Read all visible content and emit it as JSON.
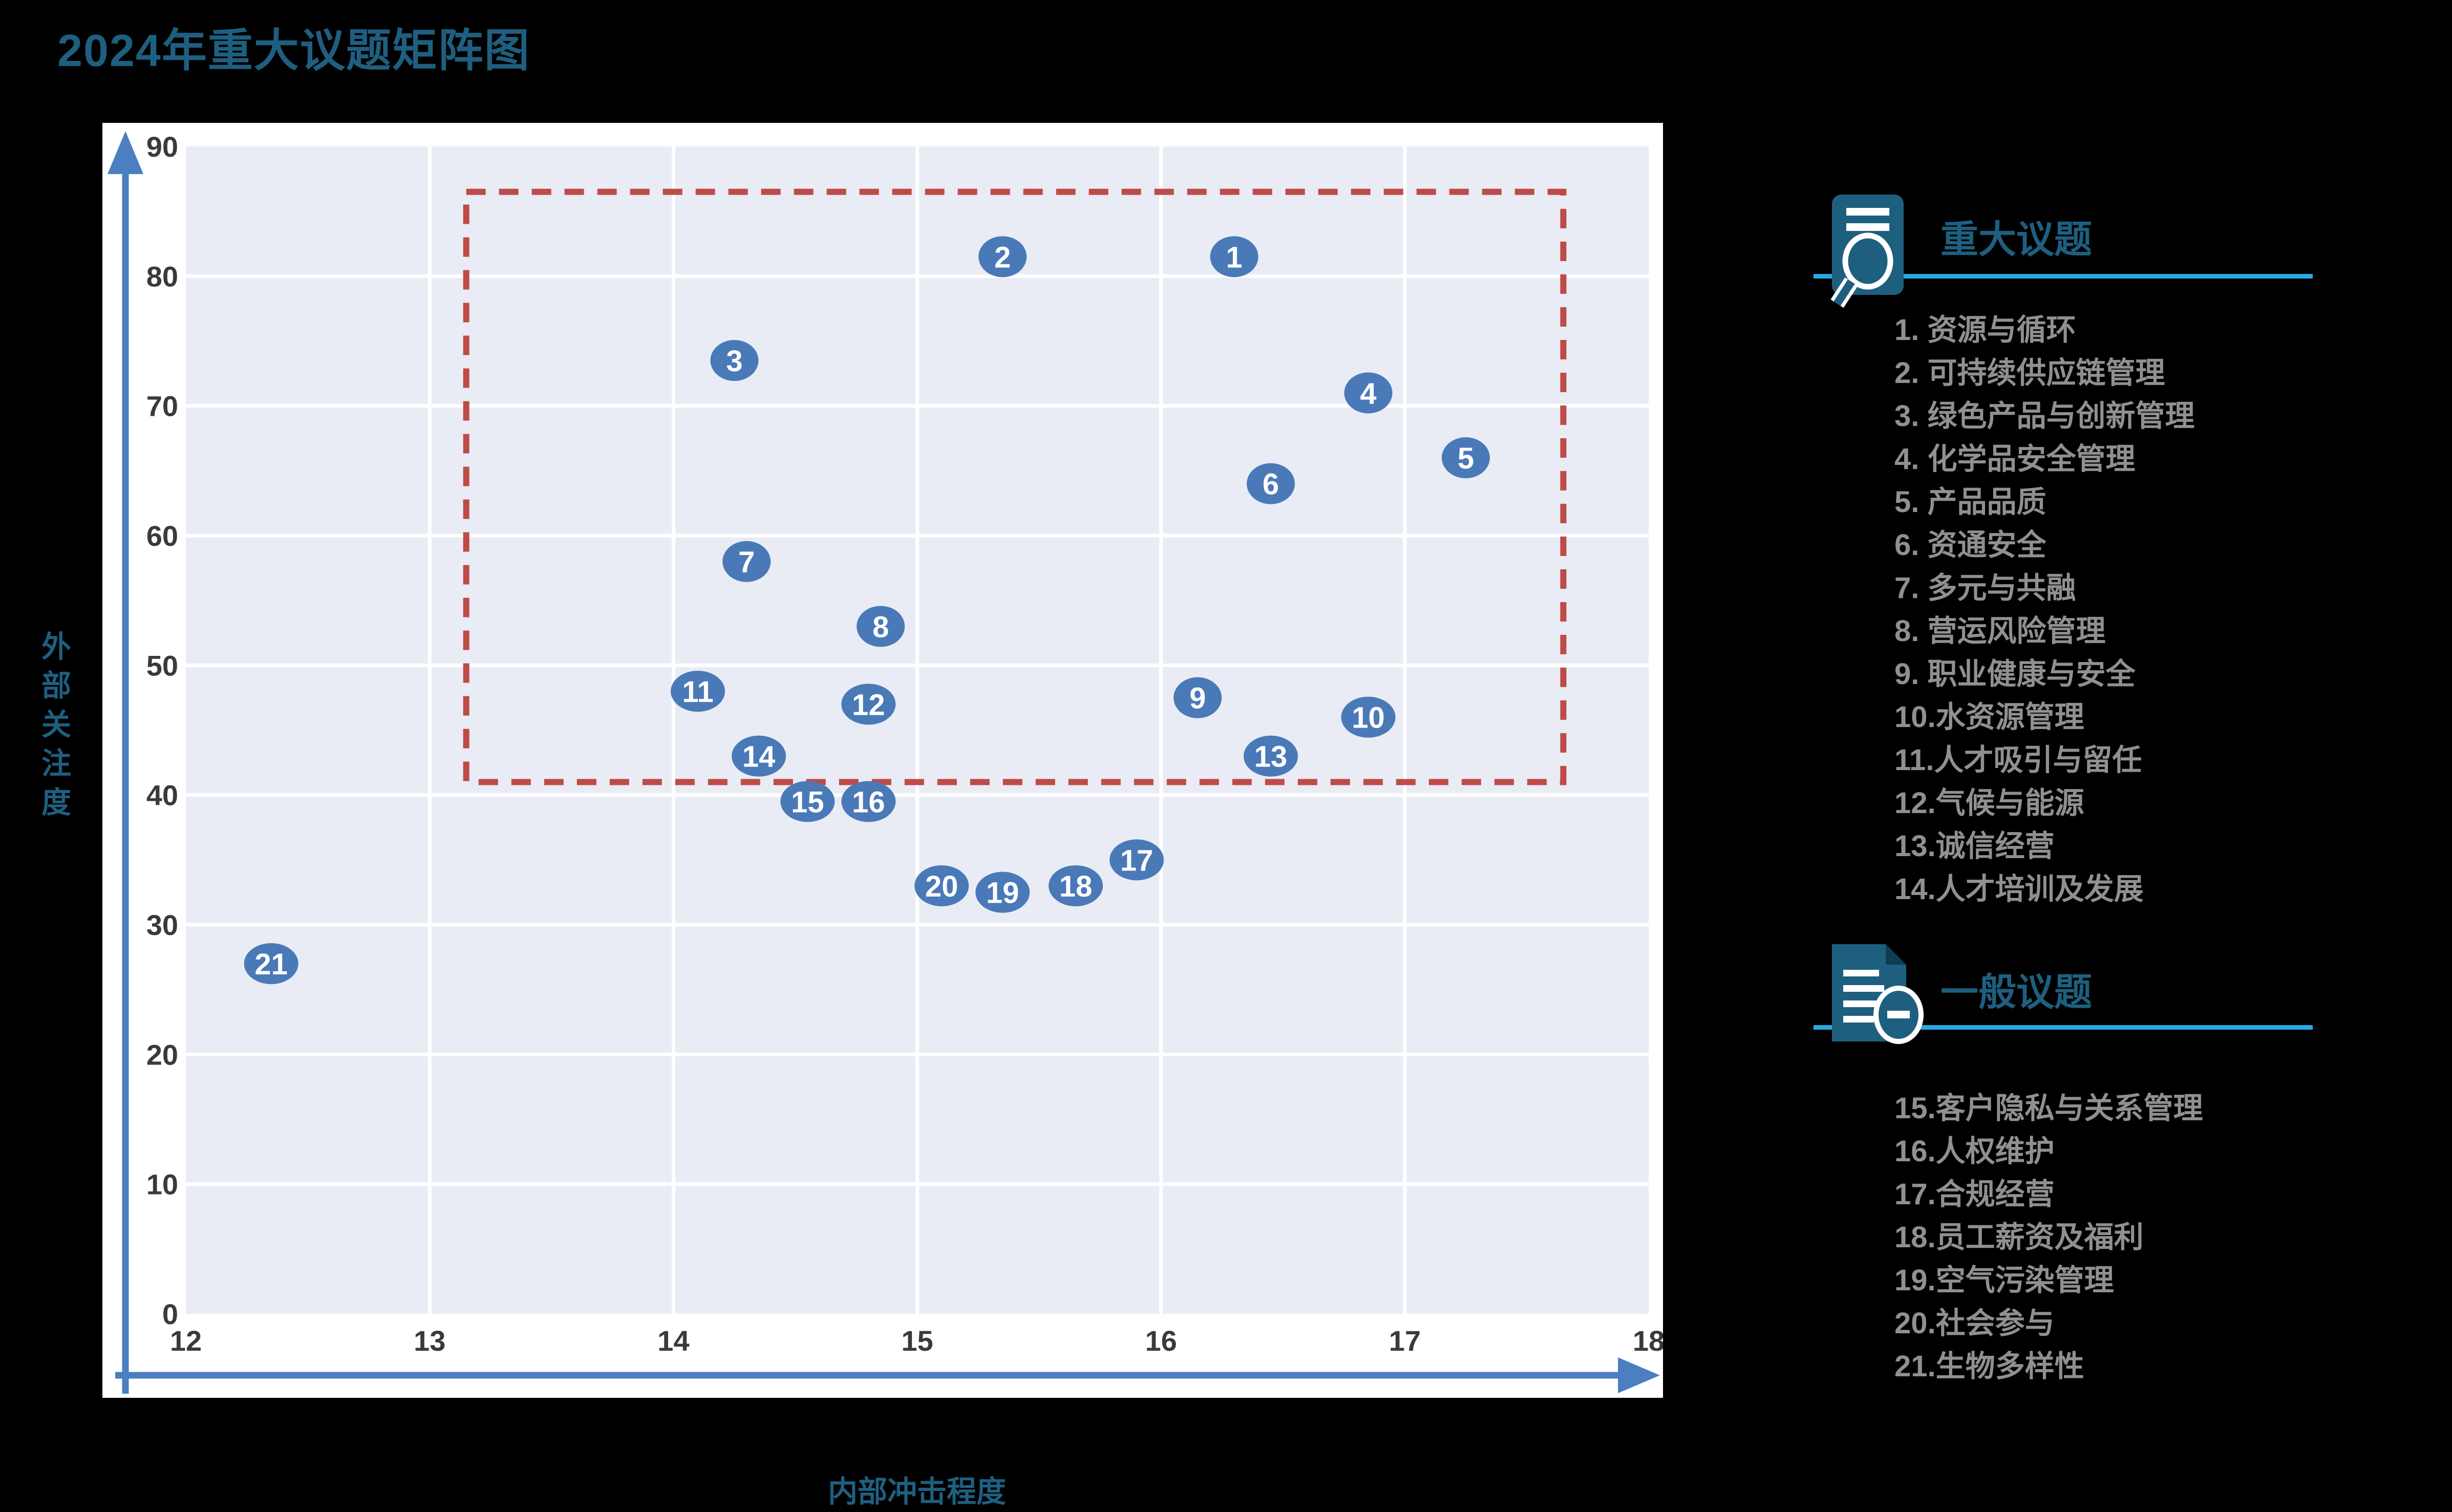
{
  "page": {
    "background": "#000000"
  },
  "title": "2024年重大议题矩阵图",
  "colors": {
    "accent_teal": "#1E5F80",
    "underline_cyan": "#29A9E1",
    "legend_item_grey": "#909090",
    "bubble_blue": "#4A79B8",
    "bubble_text": "#FFFFFF",
    "axis_blue": "#4C7FC0",
    "plot_background": "#E9ECF4",
    "gridline": "#FFFFFF",
    "panel_background": "#FFFFFF",
    "dashed_box_red": "#BE4B48",
    "tick_label": "#3A3A3A"
  },
  "chart_data": {
    "type": "scatter",
    "title": "2024年重大议题矩阵图",
    "xlabel": "内部冲击程度",
    "ylabel": "外部关注度",
    "xlim": [
      12,
      18
    ],
    "ylim": [
      0,
      90
    ],
    "x_ticks": [
      12,
      13,
      14,
      15,
      16,
      17,
      18
    ],
    "y_ticks": [
      0,
      10,
      20,
      30,
      40,
      50,
      60,
      70,
      80,
      90
    ],
    "grid": true,
    "legend_position": "right",
    "highlight_box": {
      "x_min": 13.15,
      "x_max": 17.65,
      "y_min": 41,
      "y_max": 86.5,
      "line_style": "dashed",
      "color": "#BE4B48"
    },
    "points": [
      {
        "id": 1,
        "name": "资源与循环",
        "x": 16.3,
        "y": 81.5
      },
      {
        "id": 2,
        "name": "可持续供应链管理",
        "x": 15.35,
        "y": 81.5
      },
      {
        "id": 3,
        "name": "绿色产品与创新管理",
        "x": 14.25,
        "y": 73.5
      },
      {
        "id": 4,
        "name": "化学品安全管理",
        "x": 16.85,
        "y": 71.0
      },
      {
        "id": 5,
        "name": "产品品质",
        "x": 17.25,
        "y": 66.0
      },
      {
        "id": 6,
        "name": "资通安全",
        "x": 16.45,
        "y": 64.0
      },
      {
        "id": 7,
        "name": "多元与共融",
        "x": 14.3,
        "y": 58.0
      },
      {
        "id": 8,
        "name": "营运风险管理",
        "x": 14.85,
        "y": 53.0
      },
      {
        "id": 9,
        "name": "职业健康与安全",
        "x": 16.15,
        "y": 47.5
      },
      {
        "id": 10,
        "name": "水资源管理",
        "x": 16.85,
        "y": 46.0
      },
      {
        "id": 11,
        "name": "人才吸引与留任",
        "x": 14.1,
        "y": 48.0
      },
      {
        "id": 12,
        "name": "气候与能源",
        "x": 14.8,
        "y": 47.0
      },
      {
        "id": 13,
        "name": "诚信经营",
        "x": 16.45,
        "y": 43.0
      },
      {
        "id": 14,
        "name": "人才培训及发展",
        "x": 14.35,
        "y": 43.0
      },
      {
        "id": 15,
        "name": "客户隐私与关系管理",
        "x": 14.55,
        "y": 39.5
      },
      {
        "id": 16,
        "name": "人权维护",
        "x": 14.8,
        "y": 39.5
      },
      {
        "id": 17,
        "name": "合规经营",
        "x": 15.9,
        "y": 35.0
      },
      {
        "id": 18,
        "name": "员工薪资及福利",
        "x": 15.65,
        "y": 33.0
      },
      {
        "id": 19,
        "name": "空气污染管理",
        "x": 15.35,
        "y": 32.5
      },
      {
        "id": 20,
        "name": "社会参与",
        "x": 15.1,
        "y": 33.0
      },
      {
        "id": 21,
        "name": "生物多样性",
        "x": 12.35,
        "y": 27.0
      }
    ]
  },
  "legend": {
    "major": {
      "title": "重大议题",
      "icon": "report-magnifier-icon",
      "items": [
        "1. 资源与循环",
        "2. 可持续供应链管理",
        "3. 绿色产品与创新管理",
        "4. 化学品安全管理",
        "5. 产品品质",
        "6. 资通安全",
        "7. 多元与共融",
        "8. 营运风险管理",
        "9. 职业健康与安全",
        "10.水资源管理",
        "11.人才吸引与留任",
        "12.气候与能源",
        "13.诚信经营",
        "14.人才培训及发展"
      ]
    },
    "general": {
      "title": "一般议题",
      "icon": "document-minus-icon",
      "items": [
        "15.客户隐私与关系管理",
        "16.人权维护",
        "17.合规经营",
        "18.员工薪资及福利",
        "19.空气污染管理",
        "20.社会参与",
        "21.生物多样性"
      ]
    }
  }
}
